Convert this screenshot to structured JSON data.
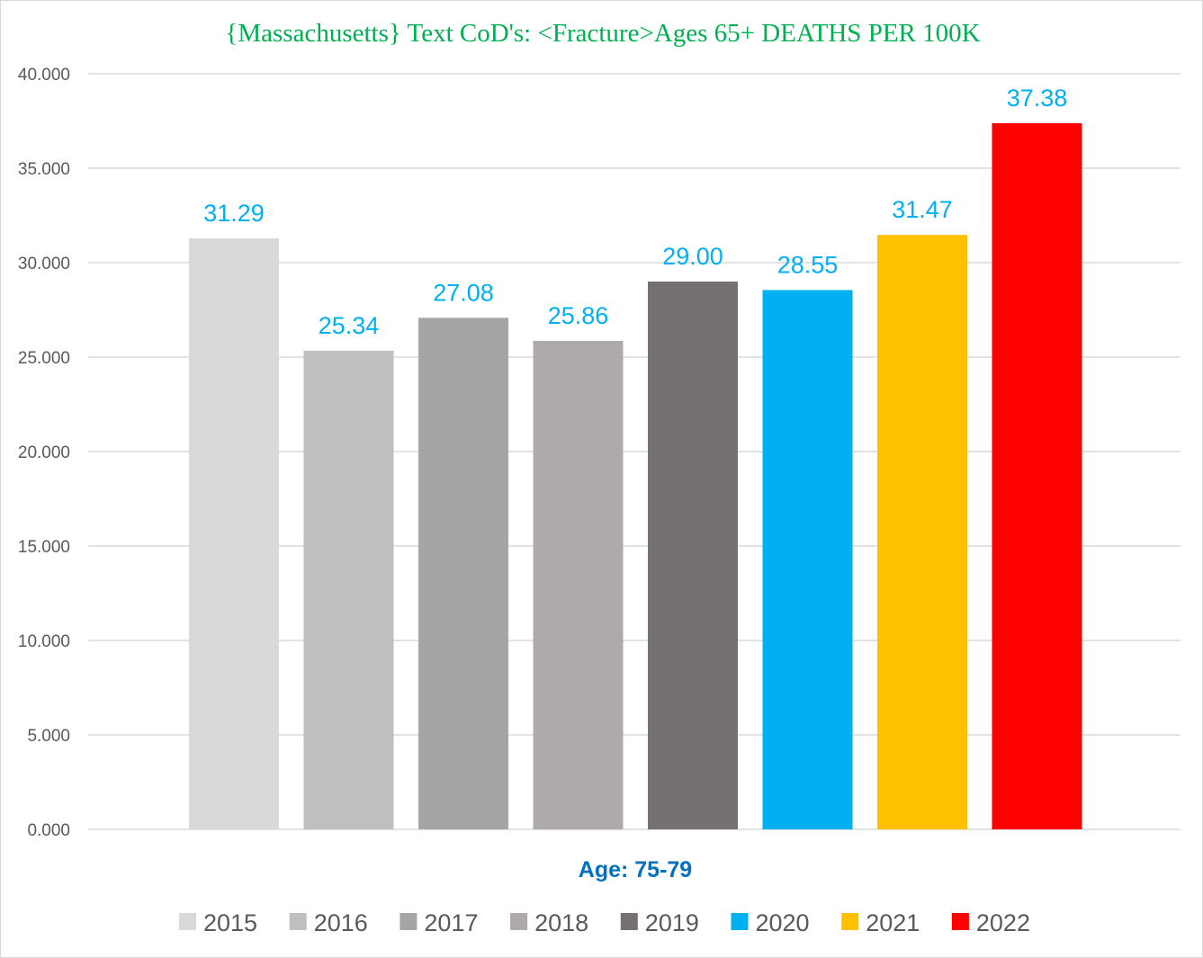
{
  "chart_data": {
    "type": "bar",
    "title": "{Massachusetts}   Text CoD's: <Fracture>Ages  65+ DEATHS PER 100K",
    "xlabel": "Age: 75-79",
    "ylabel": "",
    "ylim": [
      0,
      40
    ],
    "yticks": [
      0,
      5,
      10,
      15,
      20,
      25,
      30,
      35,
      40
    ],
    "ytick_labels": [
      "0.000",
      "5.000",
      "10.000",
      "15.000",
      "20.000",
      "25.000",
      "30.000",
      "35.000",
      "40.000"
    ],
    "grid": true,
    "legend_position": "bottom",
    "category": "Age: 75-79",
    "series": [
      {
        "name": "2015",
        "value": 31.29,
        "label": "31.29",
        "color": "#d9d9d9"
      },
      {
        "name": "2016",
        "value": 25.34,
        "label": "25.34",
        "color": "#bfbfbf"
      },
      {
        "name": "2017",
        "value": 27.08,
        "label": "27.08",
        "color": "#a5a5a5"
      },
      {
        "name": "2018",
        "value": 25.86,
        "label": "25.86",
        "color": "#aeaaaa"
      },
      {
        "name": "2019",
        "value": 29.0,
        "label": "29.00",
        "color": "#767171"
      },
      {
        "name": "2020",
        "value": 28.55,
        "label": "28.55",
        "color": "#00b0f0"
      },
      {
        "name": "2021",
        "value": 31.47,
        "label": "31.47",
        "color": "#ffc000"
      },
      {
        "name": "2022",
        "value": 37.38,
        "label": "37.38",
        "color": "#ff0000"
      }
    ]
  },
  "colors": {
    "title": "#00b050",
    "data_label": "#00b0f0",
    "xlabel": "#0070c0",
    "gridline": "#d9d9d9",
    "tick_text": "#595959"
  }
}
